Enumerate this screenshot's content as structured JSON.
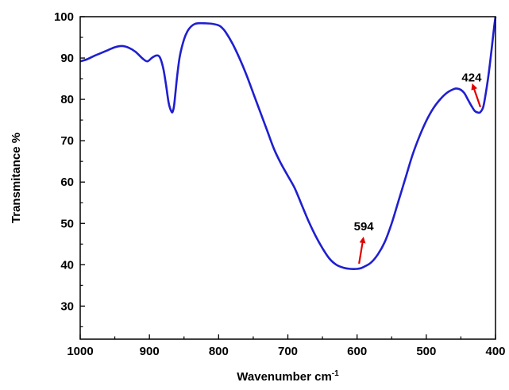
{
  "chart_data": {
    "type": "line",
    "title": "",
    "xlabel": "Wavenumber cm",
    "xlabel_sup": "-1",
    "ylabel": "Transmitance %",
    "xlim": [
      1000,
      400
    ],
    "ylim": [
      22,
      100
    ],
    "x_reversed": true,
    "grid": false,
    "x_ticks": [
      1000,
      900,
      800,
      700,
      600,
      500,
      400
    ],
    "y_ticks": [
      30,
      40,
      50,
      60,
      70,
      80,
      90,
      100
    ],
    "series": [
      {
        "color": "#1f1fd0",
        "x": [
          1000,
          990,
          980,
          970,
          960,
          950,
          940,
          930,
          920,
          910,
          903,
          896,
          890,
          885,
          880,
          876,
          872,
          868,
          866,
          864,
          860,
          856,
          850,
          845,
          840,
          835,
          830,
          820,
          810,
          800,
          795,
          790,
          780,
          770,
          760,
          750,
          740,
          730,
          720,
          710,
          700,
          690,
          680,
          670,
          660,
          650,
          640,
          630,
          620,
          610,
          600,
          594,
          590,
          580,
          570,
          560,
          550,
          540,
          530,
          520,
          510,
          500,
          490,
          480,
          470,
          460,
          455,
          450,
          445,
          440,
          435,
          430,
          425,
          422,
          418,
          415,
          410,
          405,
          402,
          400
        ],
        "y": [
          89.2,
          89.7,
          90.5,
          91.2,
          91.9,
          92.6,
          92.9,
          92.5,
          91.5,
          89.9,
          89.2,
          90.1,
          90.6,
          90.2,
          87.5,
          83.5,
          79.0,
          77.0,
          77.2,
          79.0,
          85.5,
          90.5,
          94.5,
          96.5,
          97.6,
          98.2,
          98.4,
          98.4,
          98.3,
          97.9,
          97.3,
          96.3,
          93.5,
          90.0,
          86.0,
          81.5,
          77.0,
          72.5,
          68.0,
          64.5,
          61.5,
          58.5,
          54.5,
          50.5,
          47.0,
          44.0,
          41.5,
          40.0,
          39.3,
          39.0,
          39.0,
          39.2,
          39.5,
          40.5,
          42.5,
          45.5,
          50.0,
          55.5,
          61.0,
          66.5,
          71.0,
          74.8,
          77.8,
          80.0,
          81.6,
          82.5,
          82.6,
          82.3,
          81.5,
          80.0,
          78.5,
          77.2,
          76.8,
          76.9,
          78.0,
          80.5,
          86.0,
          93.0,
          97.5,
          100
        ]
      }
    ],
    "annotations": [
      {
        "text": "594",
        "x": 596,
        "y": 39.5,
        "arrow_color": "#e00000"
      },
      {
        "text": "424",
        "x": 423,
        "y": 77.0,
        "arrow_color": "#e00000"
      }
    ]
  }
}
